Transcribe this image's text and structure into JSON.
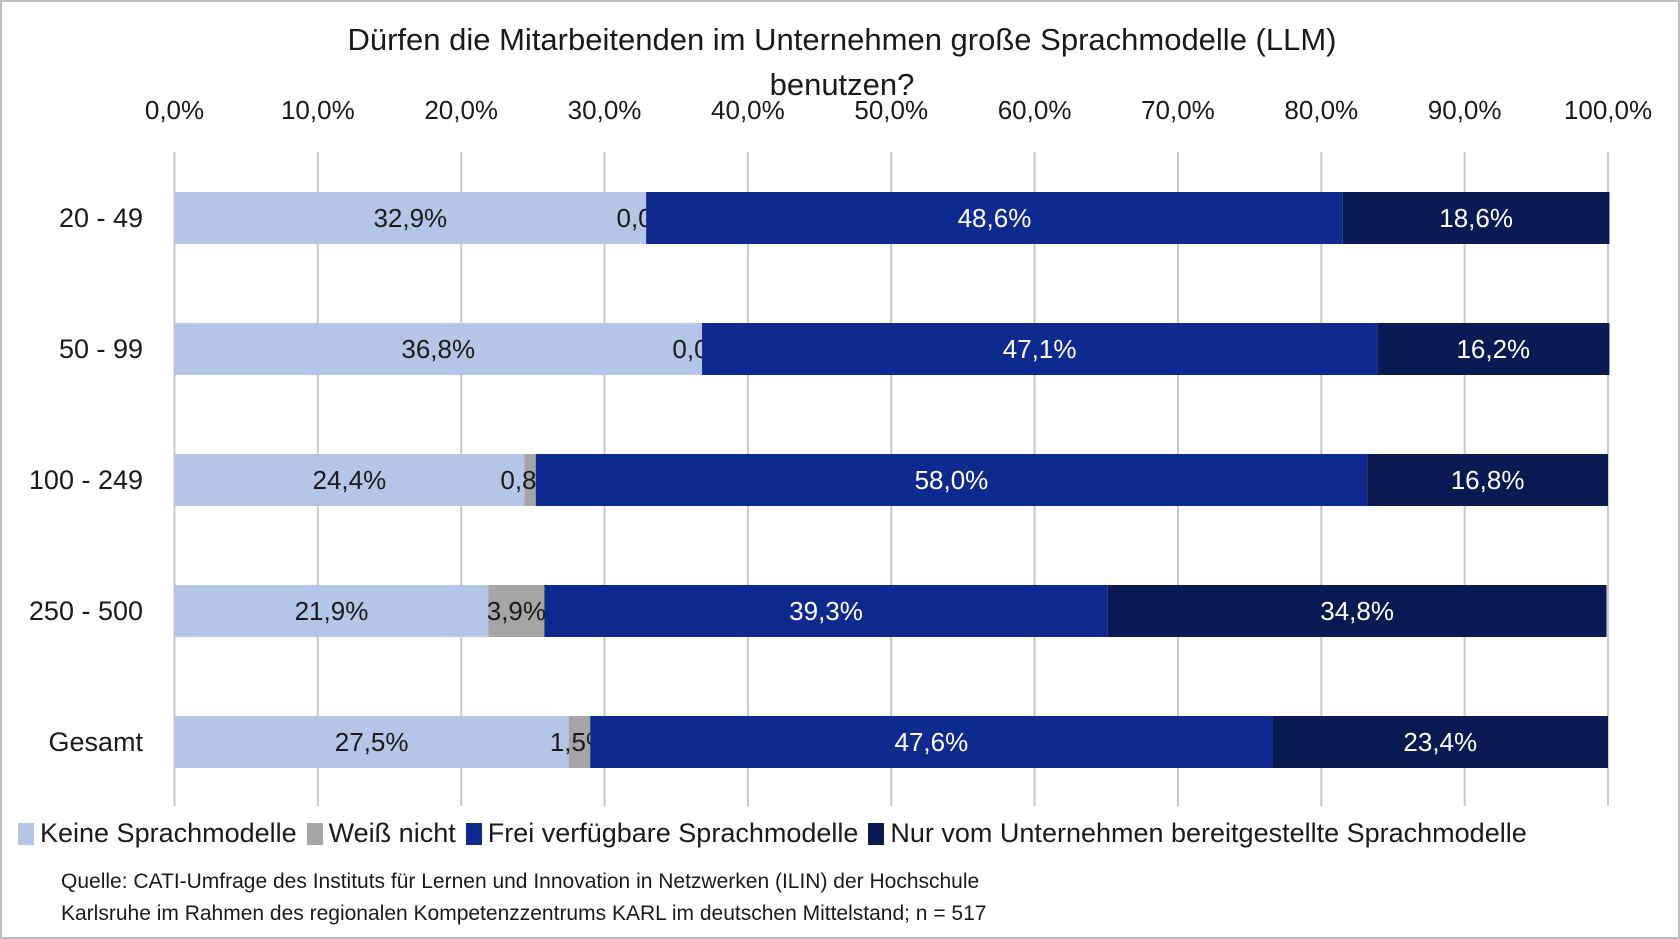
{
  "chart_data": {
    "type": "bar",
    "orientation": "horizontal",
    "stacked": true,
    "title_lines": [
      "Dürfen die Mitarbeitenden im Unternehmen große Sprachmodelle (LLM)",
      "benutzen?"
    ],
    "categories": [
      "20 - 49",
      "50 - 99",
      "100 - 249",
      "250 - 500",
      "Gesamt"
    ],
    "series": [
      {
        "name": "Keine Sprachmodelle",
        "color": "#b4c5e7",
        "label_color": "#1a1a1a",
        "values": [
          32.9,
          36.8,
          24.4,
          21.9,
          27.5
        ],
        "labels": [
          "32,9%",
          "36,8%",
          "24,4%",
          "21,9%",
          "27,5%"
        ]
      },
      {
        "name": "Weiß nicht",
        "color": "#a5a5a5",
        "label_color": "#1a1a1a",
        "values": [
          0.0,
          0.0,
          0.8,
          3.9,
          1.5
        ],
        "labels": [
          "0,0%",
          "0,0%",
          "0,8%",
          "3,9%",
          "1,5%"
        ]
      },
      {
        "name": "Frei verfügbare Sprachmodelle",
        "color": "#0f2a8f",
        "label_color": "#ffffff",
        "values": [
          48.6,
          47.1,
          58.0,
          39.3,
          47.6
        ],
        "labels": [
          "48,6%",
          "47,1%",
          "58,0%",
          "39,3%",
          "47,6%"
        ]
      },
      {
        "name": "Nur vom Unternehmen bereitgestellte Sprachmodelle",
        "color": "#0a1a52",
        "label_color": "#ffffff",
        "values": [
          18.6,
          16.2,
          16.8,
          34.8,
          23.4
        ],
        "labels": [
          "18,6%",
          "16,2%",
          "16,8%",
          "34,8%",
          "23,4%"
        ]
      }
    ],
    "xlim": [
      0,
      100
    ],
    "x_ticks": [
      "0,0%",
      "10,0%",
      "20,0%",
      "30,0%",
      "40,0%",
      "50,0%",
      "60,0%",
      "70,0%",
      "80,0%",
      "90,0%",
      "100,0%"
    ],
    "x_axis_position": "top",
    "grid": true,
    "legend_position": "bottom"
  },
  "source": {
    "line1": "Quelle: CATI-Umfrage des Instituts für Lernen und Innovation in Netzwerken (ILIN) der Hochschule",
    "line2": "Karlsruhe im Rahmen des regionalen Kompetenzzentrums KARL im deutschen Mittelstand; n = 517"
  }
}
